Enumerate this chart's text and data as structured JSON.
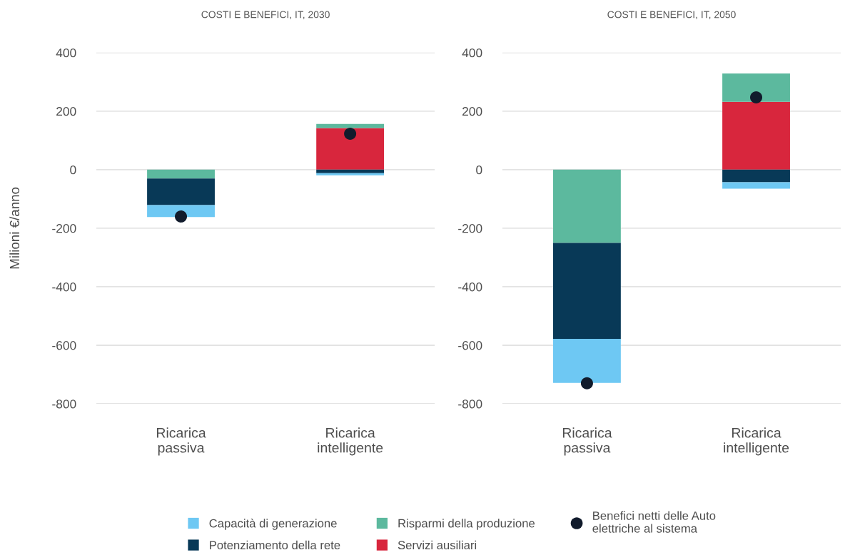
{
  "chart_data": [
    {
      "type": "bar",
      "title": "COSTI E BENEFICI, IT, 2030",
      "ylabel": "Milioni €/anno",
      "categories": [
        "Ricarica passiva",
        "Ricarica intelligente"
      ],
      "stacked": true,
      "ylim": [
        -800,
        400
      ],
      "yticks": [
        -800,
        -600,
        -400,
        -200,
        0,
        200,
        400
      ],
      "grid": "y",
      "legend": "bottom",
      "marker": "circle",
      "series": [
        {
          "name": "Servizi ausiliari",
          "color": "#d8263d",
          "values": [
            null,
            142
          ]
        },
        {
          "name": "Risparmi della produzione",
          "color": "#5cb99e",
          "values": [
            -30,
            14
          ]
        },
        {
          "name": "Potenziamento della rete",
          "color": "#083957",
          "values": [
            -91,
            -12
          ]
        },
        {
          "name": "Capacità di generazione",
          "color": "#6ec8f3",
          "values": [
            -41,
            -7
          ]
        },
        {
          "type": "scatter",
          "name": "Benefici netti delle Auto elettriche al sistema",
          "color": "#111b2c",
          "x": [
            "Ricarica passiva",
            "Ricarica intelligente"
          ],
          "values": [
            -160,
            123
          ]
        }
      ]
    },
    {
      "type": "bar",
      "title": "COSTI E BENEFICI, IT, 2050",
      "categories": [
        "Ricarica passiva",
        "Ricarica intelligente"
      ],
      "stacked": true,
      "ylim": [
        -800,
        400
      ],
      "yticks": [
        -800,
        -600,
        -400,
        -200,
        0,
        200,
        400
      ],
      "grid": "y",
      "legend": "bottom",
      "marker": "circle",
      "series": [
        {
          "name": "Servizi ausiliari",
          "color": "#d8263d",
          "values": [
            null,
            232
          ]
        },
        {
          "name": "Risparmi della produzione",
          "color": "#5cb99e",
          "values": [
            -250,
            97
          ]
        },
        {
          "name": "Potenziamento della rete",
          "color": "#083957",
          "values": [
            -328,
            -43
          ]
        },
        {
          "name": "Capacità di generazione",
          "color": "#6ec8f3",
          "values": [
            -151,
            -22
          ]
        },
        {
          "type": "scatter",
          "name": "Benefici netti delle Auto elettriche al sistema",
          "color": "#111b2c",
          "x": [
            "Ricarica passiva",
            "Ricarica intelligente"
          ],
          "values": [
            -730,
            247
          ]
        }
      ]
    }
  ]
}
